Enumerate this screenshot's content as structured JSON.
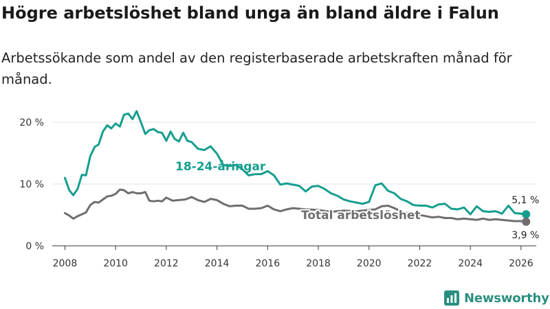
{
  "title": "Högre arbetslöshet bland unga än bland äldre i Falun",
  "subtitle": "Arbetssökande som andel av den registerbaserade arbetskraften månad för månad.",
  "brand": "Newsworthy",
  "colors": {
    "youth": "#159e8f",
    "total": "#6e6e6e",
    "grid": "#e3e3e3",
    "axis": "#333333"
  },
  "chart_data": {
    "type": "line",
    "title": "Högre arbetslöshet bland unga än bland äldre i Falun",
    "subtitle": "Arbetssökande som andel av den registerbaserade arbetskraften månad för månad.",
    "xlabel": "",
    "ylabel": "",
    "xlim": [
      2007.5,
      2026.6
    ],
    "ylim": [
      0,
      22
    ],
    "xticks": [
      2008,
      2010,
      2012,
      2014,
      2016,
      2018,
      2020,
      2022,
      2024,
      2026
    ],
    "xtick_labels": [
      "2008",
      "2010",
      "2012",
      "2014",
      "2016",
      "2018",
      "2020",
      "2022",
      "2024",
      "2026"
    ],
    "yticks": [
      0,
      10,
      20
    ],
    "ytick_labels": [
      "0 %",
      "10 %",
      "20 %"
    ],
    "grid": true,
    "series": [
      {
        "name": "18-24-åringar",
        "label": "18-24-åringar",
        "color": "#159e8f",
        "end_label": "5,1 %",
        "x": [
          2008.0,
          2008.17,
          2008.33,
          2008.5,
          2008.67,
          2008.83,
          2009.0,
          2009.17,
          2009.33,
          2009.5,
          2009.67,
          2009.83,
          2010.0,
          2010.17,
          2010.33,
          2010.5,
          2010.67,
          2010.83,
          2011.0,
          2011.17,
          2011.33,
          2011.5,
          2011.67,
          2011.83,
          2012.0,
          2012.17,
          2012.33,
          2012.5,
          2012.67,
          2012.83,
          2013.0,
          2013.25,
          2013.5,
          2013.75,
          2014.0,
          2014.25,
          2014.5,
          2014.75,
          2015.0,
          2015.25,
          2015.5,
          2015.75,
          2016.0,
          2016.25,
          2016.5,
          2016.75,
          2017.0,
          2017.25,
          2017.5,
          2017.75,
          2018.0,
          2018.25,
          2018.5,
          2018.75,
          2019.0,
          2019.25,
          2019.5,
          2019.75,
          2020.0,
          2020.25,
          2020.5,
          2020.75,
          2021.0,
          2021.25,
          2021.5,
          2021.75,
          2022.0,
          2022.25,
          2022.5,
          2022.75,
          2023.0,
          2023.25,
          2023.5,
          2023.75,
          2024.0,
          2024.25,
          2024.5,
          2024.75,
          2025.0,
          2025.25,
          2025.5,
          2025.75,
          2026.0,
          2026.2
        ],
        "values": [
          11,
          9,
          8.2,
          9.2,
          11.5,
          11.4,
          14.5,
          16,
          16.4,
          18.5,
          19.5,
          19,
          19.8,
          19.3,
          21.2,
          21.4,
          20.5,
          21.8,
          20,
          18.1,
          18.7,
          18.9,
          18.4,
          18.3,
          17,
          18.5,
          17.3,
          16.9,
          18.3,
          17,
          16.8,
          15.7,
          15.5,
          16.1,
          14.9,
          13.1,
          12.9,
          13.1,
          12.4,
          11.4,
          11.6,
          11.6,
          12.1,
          11.4,
          9.9,
          10.1,
          9.9,
          9.7,
          8.8,
          9.6,
          9.7,
          9.2,
          8.5,
          8.1,
          7.5,
          7.2,
          7.0,
          6.8,
          7.1,
          9.8,
          10.1,
          8.9,
          8.5,
          7.6,
          7.2,
          6.6,
          6.5,
          6.5,
          6.2,
          6.7,
          6.8,
          6.0,
          5.9,
          6.2,
          5.1,
          6.4,
          5.6,
          5.5,
          5.6,
          5.2,
          6.5,
          5.3,
          5.2,
          5.1
        ]
      },
      {
        "name": "Total arbetslöshet",
        "label": "Total arbetslöshet",
        "color": "#6e6e6e",
        "end_label": "3,9 %",
        "x": [
          2008.0,
          2008.17,
          2008.33,
          2008.5,
          2008.67,
          2008.83,
          2009.0,
          2009.17,
          2009.33,
          2009.5,
          2009.67,
          2009.83,
          2010.0,
          2010.17,
          2010.33,
          2010.5,
          2010.67,
          2010.83,
          2011.0,
          2011.17,
          2011.33,
          2011.5,
          2011.67,
          2011.83,
          2012.0,
          2012.25,
          2012.5,
          2012.75,
          2013.0,
          2013.25,
          2013.5,
          2013.75,
          2014.0,
          2014.25,
          2014.5,
          2014.75,
          2015.0,
          2015.25,
          2015.5,
          2015.75,
          2016.0,
          2016.25,
          2016.5,
          2016.75,
          2017.0,
          2017.5,
          2018.0,
          2018.5,
          2019.0,
          2019.5,
          2020.0,
          2020.25,
          2020.5,
          2020.75,
          2021.0,
          2021.25,
          2021.5,
          2021.75,
          2022.0,
          2022.25,
          2022.5,
          2022.75,
          2023.0,
          2023.25,
          2023.5,
          2023.75,
          2024.0,
          2024.25,
          2024.5,
          2024.75,
          2025.0,
          2025.25,
          2025.5,
          2025.75,
          2026.0,
          2026.2
        ],
        "values": [
          5.3,
          4.9,
          4.4,
          4.8,
          5.1,
          5.4,
          6.6,
          7.1,
          7.0,
          7.5,
          8.0,
          8.1,
          8.4,
          9.1,
          9.0,
          8.5,
          8.7,
          8.5,
          8.5,
          8.7,
          7.3,
          7.2,
          7.3,
          7.2,
          7.8,
          7.3,
          7.4,
          7.5,
          7.9,
          7.4,
          7.1,
          7.6,
          7.4,
          6.8,
          6.4,
          6.5,
          6.5,
          6.0,
          6.0,
          6.1,
          6.5,
          5.9,
          5.6,
          5.9,
          6.1,
          5.9,
          5.8,
          5.5,
          5.7,
          5.6,
          5.8,
          5.9,
          6.4,
          6.5,
          6.1,
          5.6,
          5.3,
          5.0,
          5.0,
          4.8,
          4.6,
          4.7,
          4.5,
          4.5,
          4.3,
          4.4,
          4.3,
          4.2,
          4.4,
          4.2,
          4.3,
          4.2,
          4.1,
          4.0,
          4.0,
          3.9
        ]
      }
    ]
  }
}
